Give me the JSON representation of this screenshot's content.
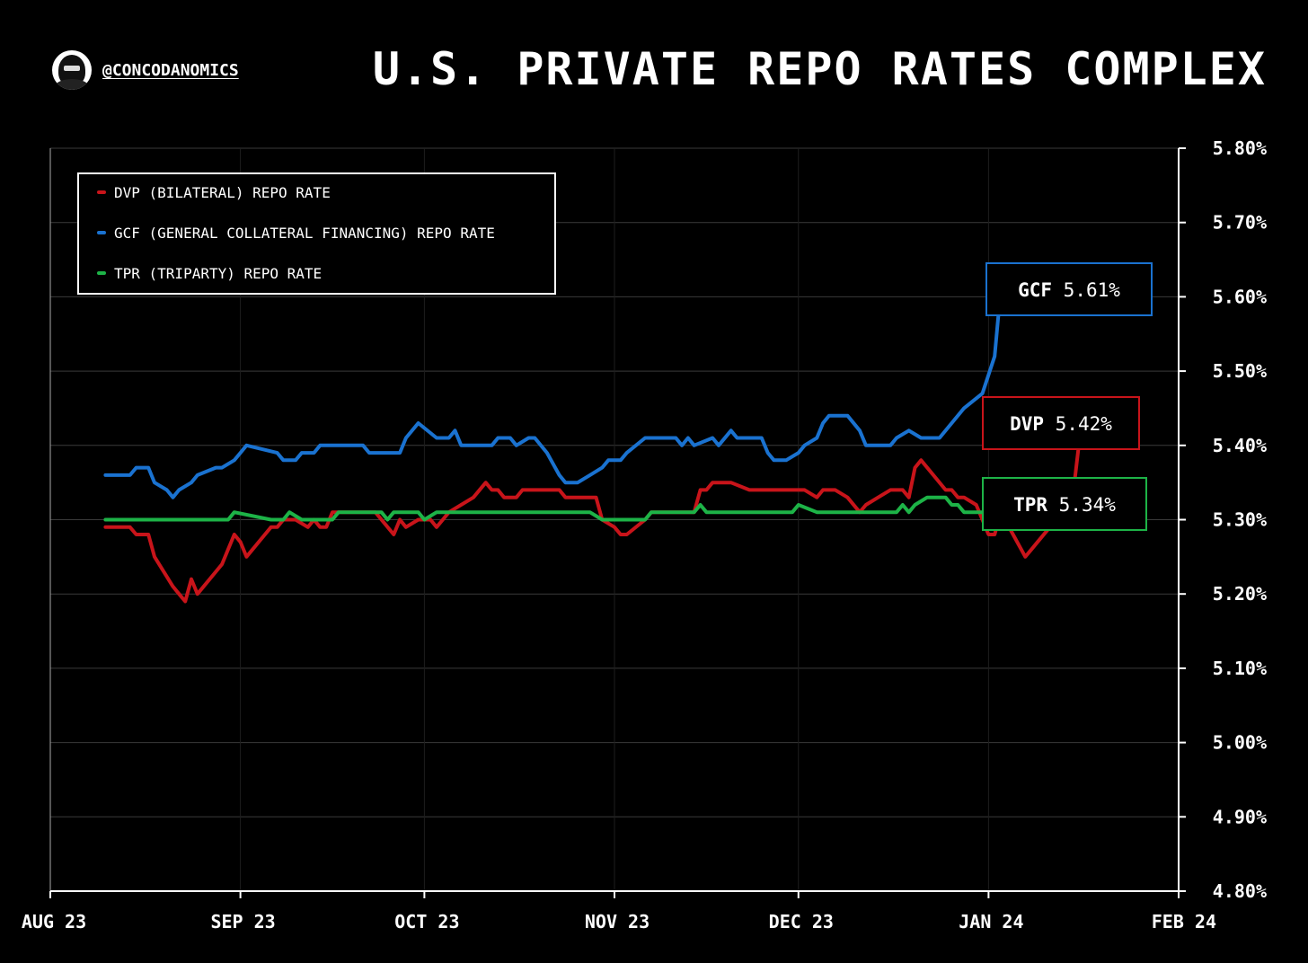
{
  "header": {
    "handle": "@CONCODANOMICS",
    "title": "U.S. PRIVATE REPO RATES COMPLEX"
  },
  "colors": {
    "dvp": "#c8141a",
    "gcf": "#1a72d0",
    "tpr": "#1db347",
    "grid": "#3a3a3a",
    "axis": "#ffffff"
  },
  "chart_data": {
    "type": "line",
    "title": "U.S. PRIVATE REPO RATES COMPLEX",
    "xlabel": "",
    "ylabel": "",
    "x_tick_labels": [
      "AUG 23",
      "SEP 23",
      "OCT 23",
      "NOV 23",
      "DEC 23",
      "JAN 24",
      "FEB 24"
    ],
    "y_tick_labels": [
      "5.80%",
      "5.70%",
      "5.60%",
      "5.50%",
      "5.40%",
      "5.30%",
      "5.20%",
      "5.10%",
      "5.00%",
      "4.90%",
      "4.80%"
    ],
    "ylim": [
      4.8,
      5.8
    ],
    "xlim": [
      "2023-08-01",
      "2024-02-01"
    ],
    "grid": true,
    "legend_position": "top-left",
    "series": [
      {
        "key": "dvp",
        "name": "DVP (BILATERAL) REPO RATE",
        "tag": "DVP",
        "last_label": "5.42%",
        "points": [
          [
            "2023-08-10",
            5.29
          ],
          [
            "2023-08-14",
            5.29
          ],
          [
            "2023-08-15",
            5.28
          ],
          [
            "2023-08-17",
            5.28
          ],
          [
            "2023-08-18",
            5.25
          ],
          [
            "2023-08-21",
            5.21
          ],
          [
            "2023-08-22",
            5.2
          ],
          [
            "2023-08-23",
            5.19
          ],
          [
            "2023-08-24",
            5.22
          ],
          [
            "2023-08-25",
            5.2
          ],
          [
            "2023-08-28",
            5.23
          ],
          [
            "2023-08-29",
            5.24
          ],
          [
            "2023-08-31",
            5.28
          ],
          [
            "2023-09-01",
            5.27
          ],
          [
            "2023-09-02",
            5.25
          ],
          [
            "2023-09-05",
            5.28
          ],
          [
            "2023-09-06",
            5.29
          ],
          [
            "2023-09-07",
            5.29
          ],
          [
            "2023-09-08",
            5.3
          ],
          [
            "2023-09-10",
            5.3
          ],
          [
            "2023-09-12",
            5.29
          ],
          [
            "2023-09-13",
            5.3
          ],
          [
            "2023-09-14",
            5.29
          ],
          [
            "2023-09-15",
            5.29
          ],
          [
            "2023-09-16",
            5.31
          ],
          [
            "2023-09-19",
            5.31
          ],
          [
            "2023-09-21",
            5.31
          ],
          [
            "2023-09-22",
            5.31
          ],
          [
            "2023-09-23",
            5.31
          ],
          [
            "2023-09-26",
            5.28
          ],
          [
            "2023-09-27",
            5.3
          ],
          [
            "2023-09-28",
            5.29
          ],
          [
            "2023-09-30",
            5.3
          ],
          [
            "2023-10-02",
            5.3
          ],
          [
            "2023-10-03",
            5.29
          ],
          [
            "2023-10-04",
            5.3
          ],
          [
            "2023-10-05",
            5.31
          ],
          [
            "2023-10-07",
            5.32
          ],
          [
            "2023-10-09",
            5.33
          ],
          [
            "2023-10-11",
            5.35
          ],
          [
            "2023-10-12",
            5.34
          ],
          [
            "2023-10-13",
            5.34
          ],
          [
            "2023-10-14",
            5.33
          ],
          [
            "2023-10-16",
            5.33
          ],
          [
            "2023-10-17",
            5.34
          ],
          [
            "2023-10-19",
            5.34
          ],
          [
            "2023-10-20",
            5.34
          ],
          [
            "2023-10-23",
            5.34
          ],
          [
            "2023-10-24",
            5.33
          ],
          [
            "2023-10-26",
            5.33
          ],
          [
            "2023-10-27",
            5.33
          ],
          [
            "2023-10-29",
            5.33
          ],
          [
            "2023-10-30",
            5.3
          ],
          [
            "2023-11-01",
            5.29
          ],
          [
            "2023-11-02",
            5.28
          ],
          [
            "2023-11-03",
            5.28
          ],
          [
            "2023-11-06",
            5.3
          ],
          [
            "2023-11-07",
            5.31
          ],
          [
            "2023-11-10",
            5.31
          ],
          [
            "2023-11-11",
            5.31
          ],
          [
            "2023-11-14",
            5.31
          ],
          [
            "2023-11-15",
            5.34
          ],
          [
            "2023-11-16",
            5.34
          ],
          [
            "2023-11-17",
            5.35
          ],
          [
            "2023-11-20",
            5.35
          ],
          [
            "2023-11-23",
            5.34
          ],
          [
            "2023-11-27",
            5.34
          ],
          [
            "2023-11-28",
            5.34
          ],
          [
            "2023-12-02",
            5.34
          ],
          [
            "2023-12-04",
            5.33
          ],
          [
            "2023-12-05",
            5.34
          ],
          [
            "2023-12-07",
            5.34
          ],
          [
            "2023-12-09",
            5.33
          ],
          [
            "2023-12-11",
            5.31
          ],
          [
            "2023-12-12",
            5.32
          ],
          [
            "2023-12-14",
            5.33
          ],
          [
            "2023-12-16",
            5.34
          ],
          [
            "2023-12-18",
            5.34
          ],
          [
            "2023-12-19",
            5.33
          ],
          [
            "2023-12-20",
            5.37
          ],
          [
            "2023-12-21",
            5.38
          ],
          [
            "2023-12-23",
            5.36
          ],
          [
            "2023-12-25",
            5.34
          ],
          [
            "2023-12-26",
            5.34
          ],
          [
            "2023-12-27",
            5.33
          ],
          [
            "2023-12-28",
            5.33
          ],
          [
            "2023-12-30",
            5.32
          ],
          [
            "2024-01-01",
            5.28
          ],
          [
            "2024-01-02",
            5.28
          ],
          [
            "2024-01-03",
            5.31
          ],
          [
            "2024-01-05",
            5.28
          ],
          [
            "2024-01-07",
            5.25
          ],
          [
            "2024-01-08",
            5.26
          ],
          [
            "2024-01-09",
            5.27
          ],
          [
            "2024-01-11",
            5.29
          ],
          [
            "2024-01-13",
            5.31
          ],
          [
            "2024-01-14",
            5.32
          ],
          [
            "2024-01-15",
            5.35
          ],
          [
            "2024-01-16",
            5.42
          ]
        ]
      },
      {
        "key": "gcf",
        "name": "GCF (GENERAL COLLATERAL FINANCING) REPO RATE",
        "tag": "GCF",
        "last_label": "5.61%",
        "points": [
          [
            "2023-08-10",
            5.36
          ],
          [
            "2023-08-14",
            5.36
          ],
          [
            "2023-08-15",
            5.37
          ],
          [
            "2023-08-17",
            5.37
          ],
          [
            "2023-08-18",
            5.35
          ],
          [
            "2023-08-20",
            5.34
          ],
          [
            "2023-08-21",
            5.33
          ],
          [
            "2023-08-22",
            5.34
          ],
          [
            "2023-08-24",
            5.35
          ],
          [
            "2023-08-25",
            5.36
          ],
          [
            "2023-08-28",
            5.37
          ],
          [
            "2023-08-29",
            5.37
          ],
          [
            "2023-08-31",
            5.38
          ],
          [
            "2023-09-01",
            5.39
          ],
          [
            "2023-09-02",
            5.4
          ],
          [
            "2023-09-07",
            5.39
          ],
          [
            "2023-09-08",
            5.38
          ],
          [
            "2023-09-10",
            5.38
          ],
          [
            "2023-09-11",
            5.39
          ],
          [
            "2023-09-13",
            5.39
          ],
          [
            "2023-09-14",
            5.4
          ],
          [
            "2023-09-21",
            5.4
          ],
          [
            "2023-09-22",
            5.39
          ],
          [
            "2023-09-27",
            5.39
          ],
          [
            "2023-09-28",
            5.41
          ],
          [
            "2023-09-30",
            5.43
          ],
          [
            "2023-10-03",
            5.41
          ],
          [
            "2023-10-05",
            5.41
          ],
          [
            "2023-10-06",
            5.42
          ],
          [
            "2023-10-07",
            5.4
          ],
          [
            "2023-10-12",
            5.4
          ],
          [
            "2023-10-13",
            5.41
          ],
          [
            "2023-10-15",
            5.41
          ],
          [
            "2023-10-16",
            5.4
          ],
          [
            "2023-10-18",
            5.41
          ],
          [
            "2023-10-19",
            5.41
          ],
          [
            "2023-10-21",
            5.39
          ],
          [
            "2023-10-23",
            5.36
          ],
          [
            "2023-10-24",
            5.35
          ],
          [
            "2023-10-26",
            5.35
          ],
          [
            "2023-10-28",
            5.36
          ],
          [
            "2023-10-30",
            5.37
          ],
          [
            "2023-10-31",
            5.38
          ],
          [
            "2023-11-02",
            5.38
          ],
          [
            "2023-11-03",
            5.39
          ],
          [
            "2023-11-06",
            5.41
          ],
          [
            "2023-11-11",
            5.41
          ],
          [
            "2023-11-12",
            5.4
          ],
          [
            "2023-11-13",
            5.41
          ],
          [
            "2023-11-14",
            5.4
          ],
          [
            "2023-11-17",
            5.41
          ],
          [
            "2023-11-18",
            5.4
          ],
          [
            "2023-11-20",
            5.42
          ],
          [
            "2023-11-21",
            5.41
          ],
          [
            "2023-11-25",
            5.41
          ],
          [
            "2023-11-26",
            5.39
          ],
          [
            "2023-11-27",
            5.38
          ],
          [
            "2023-11-29",
            5.38
          ],
          [
            "2023-12-01",
            5.39
          ],
          [
            "2023-12-02",
            5.4
          ],
          [
            "2023-12-04",
            5.41
          ],
          [
            "2023-12-05",
            5.43
          ],
          [
            "2023-12-06",
            5.44
          ],
          [
            "2023-12-09",
            5.44
          ],
          [
            "2023-12-11",
            5.42
          ],
          [
            "2023-12-12",
            5.4
          ],
          [
            "2023-12-13",
            5.4
          ],
          [
            "2023-12-16",
            5.4
          ],
          [
            "2023-12-17",
            5.41
          ],
          [
            "2023-12-19",
            5.42
          ],
          [
            "2023-12-21",
            5.41
          ],
          [
            "2023-12-24",
            5.41
          ],
          [
            "2023-12-26",
            5.43
          ],
          [
            "2023-12-28",
            5.45
          ],
          [
            "2023-12-31",
            5.47
          ],
          [
            "2024-01-02",
            5.52
          ],
          [
            "2024-01-03",
            5.61
          ],
          [
            "2024-01-04",
            5.61
          ]
        ]
      },
      {
        "key": "tpr",
        "name": "TPR (TRIPARTY) REPO RATE",
        "tag": "TPR",
        "last_label": "5.34%",
        "points": [
          [
            "2023-08-10",
            5.3
          ],
          [
            "2023-08-30",
            5.3
          ],
          [
            "2023-08-31",
            5.31
          ],
          [
            "2023-09-06",
            5.3
          ],
          [
            "2023-09-08",
            5.3
          ],
          [
            "2023-09-09",
            5.31
          ],
          [
            "2023-09-11",
            5.3
          ],
          [
            "2023-09-16",
            5.3
          ],
          [
            "2023-09-17",
            5.31
          ],
          [
            "2023-09-24",
            5.31
          ],
          [
            "2023-09-25",
            5.3
          ],
          [
            "2023-09-26",
            5.31
          ],
          [
            "2023-09-30",
            5.31
          ],
          [
            "2023-10-01",
            5.3
          ],
          [
            "2023-10-03",
            5.31
          ],
          [
            "2023-10-28",
            5.31
          ],
          [
            "2023-10-30",
            5.3
          ],
          [
            "2023-11-06",
            5.3
          ],
          [
            "2023-11-07",
            5.31
          ],
          [
            "2023-11-14",
            5.31
          ],
          [
            "2023-11-15",
            5.32
          ],
          [
            "2023-11-16",
            5.31
          ],
          [
            "2023-11-30",
            5.31
          ],
          [
            "2023-12-01",
            5.32
          ],
          [
            "2023-12-04",
            5.31
          ],
          [
            "2023-12-17",
            5.31
          ],
          [
            "2023-12-18",
            5.32
          ],
          [
            "2023-12-19",
            5.31
          ],
          [
            "2023-12-20",
            5.32
          ],
          [
            "2023-12-22",
            5.33
          ],
          [
            "2023-12-25",
            5.33
          ],
          [
            "2023-12-26",
            5.32
          ],
          [
            "2023-12-27",
            5.32
          ],
          [
            "2023-12-28",
            5.31
          ],
          [
            "2024-01-01",
            5.31
          ],
          [
            "2024-01-05",
            5.31
          ],
          [
            "2024-01-06",
            5.32
          ],
          [
            "2024-01-08",
            5.31
          ],
          [
            "2024-01-12",
            5.32
          ],
          [
            "2024-01-14",
            5.33
          ],
          [
            "2024-01-16",
            5.34
          ]
        ]
      }
    ]
  }
}
